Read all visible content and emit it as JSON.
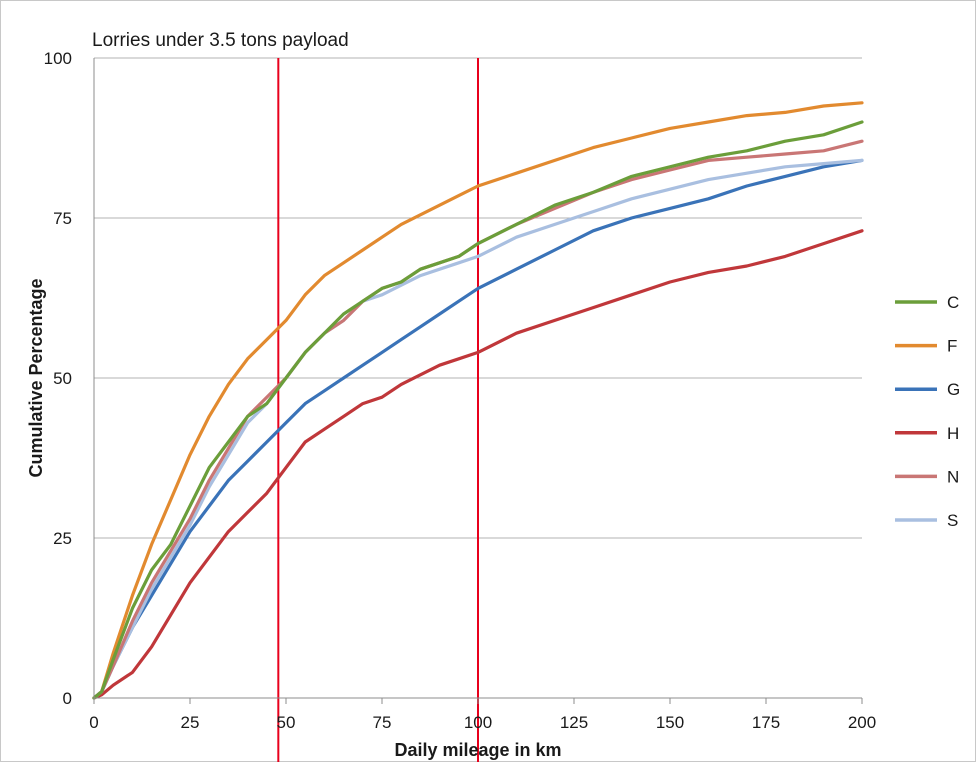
{
  "chart_data": {
    "type": "line",
    "title": "Lorries under 3.5 tons payload",
    "xlabel": "Daily mileage in km",
    "ylabel": "Cumulative Percentage",
    "xlim": [
      0,
      200
    ],
    "ylim": [
      0,
      100
    ],
    "xticks": [
      0,
      25,
      50,
      75,
      100,
      125,
      150,
      175,
      200
    ],
    "yticks": [
      0,
      25,
      50,
      75,
      100
    ],
    "grid": "horizontal",
    "legend_position": "right",
    "reference_lines_x": [
      48,
      100
    ],
    "reference_line_color": "#e8001c",
    "x": [
      0,
      2,
      5,
      10,
      15,
      20,
      25,
      30,
      35,
      40,
      45,
      50,
      55,
      60,
      65,
      70,
      75,
      80,
      85,
      90,
      95,
      100,
      110,
      120,
      130,
      140,
      150,
      160,
      170,
      180,
      190,
      200
    ],
    "series": [
      {
        "name": "C",
        "color": "#6b9e3a",
        "values": [
          0,
          1,
          6,
          14,
          20,
          24,
          30,
          36,
          40,
          44,
          46,
          50,
          54,
          57,
          60,
          62,
          64,
          65,
          67,
          68,
          69,
          71,
          74,
          77,
          79,
          81.5,
          83,
          84.5,
          85.5,
          87,
          88,
          90
        ]
      },
      {
        "name": "F",
        "color": "#e28a2f",
        "values": [
          0,
          1,
          7,
          16,
          24,
          31,
          38,
          44,
          49,
          53,
          56,
          59,
          63,
          66,
          68,
          70,
          72,
          74,
          75.5,
          77,
          78.5,
          80,
          82,
          84,
          86,
          87.5,
          89,
          90,
          91,
          91.5,
          92.5,
          93
        ]
      },
      {
        "name": "G",
        "color": "#3a73b8",
        "values": [
          0,
          1,
          5,
          11,
          16,
          21,
          26,
          30,
          34,
          37,
          40,
          43,
          46,
          48,
          50,
          52,
          54,
          56,
          58,
          60,
          62,
          64,
          67,
          70,
          73,
          75,
          76.5,
          78,
          80,
          81.5,
          83,
          84
        ]
      },
      {
        "name": "H",
        "color": "#c0373a",
        "values": [
          0,
          0.5,
          2,
          4,
          8,
          13,
          18,
          22,
          26,
          29,
          32,
          36,
          40,
          42,
          44,
          46,
          47,
          49,
          50.5,
          52,
          53,
          54,
          57,
          59,
          61,
          63,
          65,
          66.5,
          67.5,
          69,
          71,
          73
        ]
      },
      {
        "name": "N",
        "color": "#c97675",
        "values": [
          0,
          1,
          5,
          12,
          18,
          23,
          28,
          34,
          39,
          44,
          47,
          50,
          54,
          57,
          59,
          62,
          64,
          65,
          67,
          68,
          69,
          71,
          74,
          76.5,
          79,
          81,
          82.5,
          84,
          84.5,
          85,
          85.5,
          87
        ]
      },
      {
        "name": "S",
        "color": "#a9bfe0",
        "values": [
          0,
          1,
          5,
          11,
          17,
          22,
          27,
          33,
          38,
          43,
          46,
          50,
          54,
          57,
          59,
          62,
          63,
          64.5,
          66,
          67,
          68,
          69,
          72,
          74,
          76,
          78,
          79.5,
          81,
          82,
          83,
          83.5,
          84
        ]
      }
    ]
  }
}
